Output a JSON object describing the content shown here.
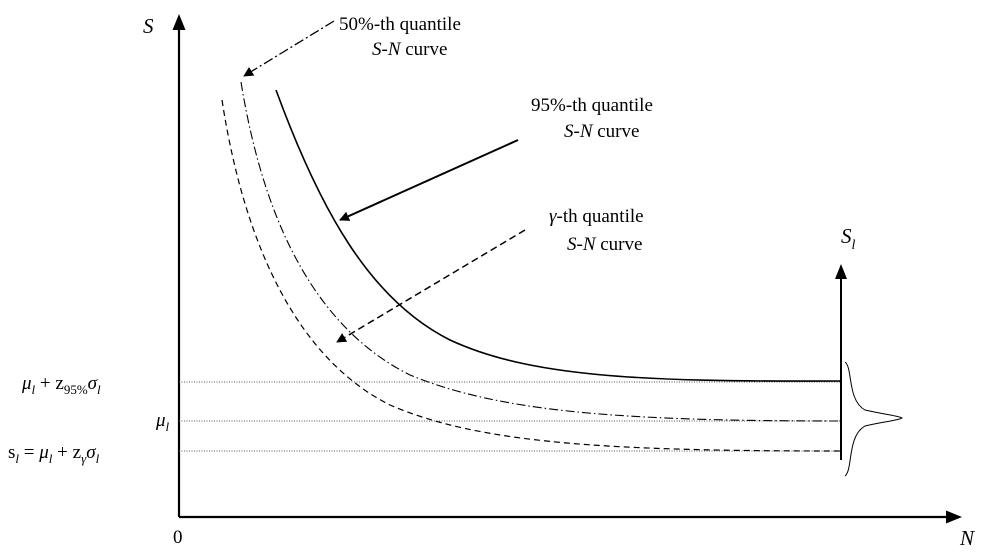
{
  "axes": {
    "y_label": "S",
    "x_label": "N",
    "origin_label": "0",
    "sl_axis_label": "S",
    "sl_axis_sub": "l"
  },
  "annotations": {
    "q50": {
      "line1": "50%-th quantile",
      "line2_ital": "S-N",
      "line2_rest": " curve"
    },
    "q95": {
      "line1": "95%-th quantile",
      "line2_ital": "S-N",
      "line2_rest": " curve"
    },
    "qgamma": {
      "line1_sym": "γ",
      "line1_rest": "-th quantile",
      "line2_ital": "S-N",
      "line2_rest": " curve"
    }
  },
  "levels": {
    "mu95": {
      "mu": "μ",
      "sub_l": "l",
      "plus": " + z",
      "sub_z": "95%",
      "sigma": "σ",
      "sub_l2": "l"
    },
    "mu": {
      "mu": "μ",
      "sub_l": "l"
    },
    "sl": {
      "s": "s",
      "sub_l": "l",
      "eq": " = ",
      "mu": "μ",
      "sub_l2": "l",
      "plus": " + z",
      "sub_z": "γ",
      "sigma": "σ",
      "sub_l3": "l"
    }
  }
}
